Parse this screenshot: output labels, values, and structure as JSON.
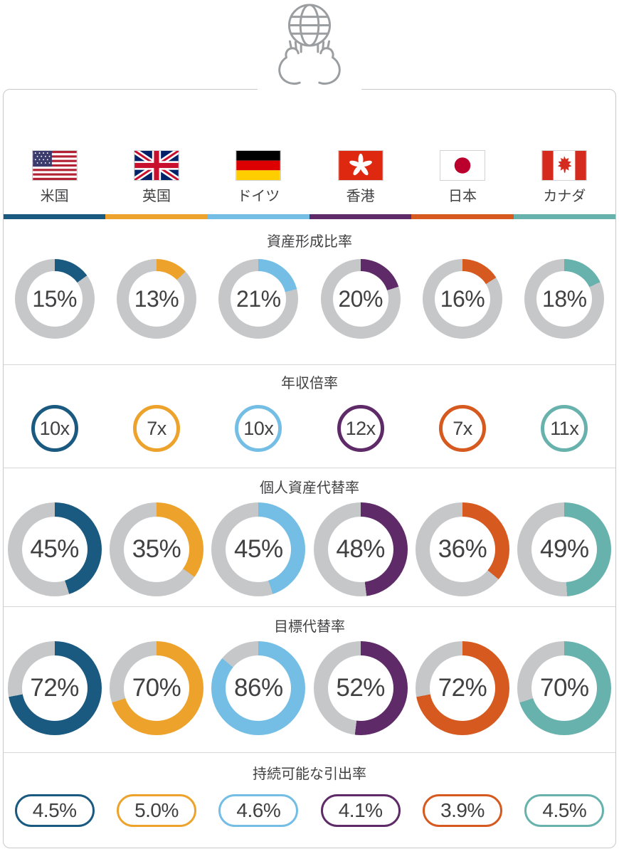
{
  "header": {
    "icon": "globe-in-hands-icon"
  },
  "countries": [
    {
      "name": "米国",
      "color": "#1b5a80",
      "flag_icon": "us-flag-icon",
      "flag": "us"
    },
    {
      "name": "英国",
      "color": "#eda32b",
      "flag_icon": "uk-flag-icon",
      "flag": "uk"
    },
    {
      "name": "ドイツ",
      "color": "#74bee6",
      "flag_icon": "germany-flag-icon",
      "flag": "de"
    },
    {
      "name": "香港",
      "color": "#5e2a68",
      "flag_icon": "hong-kong-flag-icon",
      "flag": "hk"
    },
    {
      "name": "日本",
      "color": "#d65a1f",
      "flag_icon": "japan-flag-icon",
      "flag": "jp"
    },
    {
      "name": "カナダ",
      "color": "#68b2ae",
      "flag_icon": "canada-flag-icon",
      "flag": "ca"
    }
  ],
  "sections": [
    {
      "id": "asset-formation-ratio",
      "title": "資産形成比率",
      "type": "donut",
      "size": "small",
      "labels": [
        "15%",
        "13%",
        "21%",
        "20%",
        "16%",
        "18%"
      ],
      "pct": [
        15,
        13,
        21,
        20,
        16,
        18
      ]
    },
    {
      "id": "income-multiple",
      "title": "年収倍率",
      "type": "ring",
      "labels": [
        "10x",
        "7x",
        "10x",
        "12x",
        "7x",
        "11x"
      ]
    },
    {
      "id": "personal-asset-replacement-rate",
      "title": "個人資産代替率",
      "type": "donut",
      "size": "large",
      "labels": [
        "45%",
        "35%",
        "45%",
        "48%",
        "36%",
        "49%"
      ],
      "pct": [
        45,
        35,
        45,
        48,
        36,
        49
      ]
    },
    {
      "id": "target-replacement-rate",
      "title": "目標代替率",
      "type": "donut",
      "size": "large",
      "labels": [
        "72%",
        "70%",
        "86%",
        "52%",
        "72%",
        "70%"
      ],
      "pct": [
        72,
        70,
        86,
        52,
        72,
        70
      ]
    },
    {
      "id": "sustainable-withdrawal-rate",
      "title": "持続可能な引出率",
      "type": "pill",
      "labels": [
        "4.5%",
        "5.0%",
        "4.6%",
        "4.1%",
        "3.9%",
        "4.5%"
      ]
    }
  ],
  "colors": {
    "donut_track": "#c6c7c9",
    "text": "#414042",
    "divider": "#d6d7d8",
    "panel_border": "#c8c9ca"
  },
  "chart_data": [
    {
      "type": "pie",
      "title": "資産形成比率",
      "categories": [
        "米国",
        "英国",
        "ドイツ",
        "香港",
        "日本",
        "カナダ"
      ],
      "values": [
        15,
        13,
        21,
        20,
        16,
        18
      ],
      "unit": "%",
      "note": "one donut gauge per country, colored arc starts at 12 o'clock clockwise, gray remainder"
    },
    {
      "type": "table",
      "title": "年収倍率",
      "categories": [
        "米国",
        "英国",
        "ドイツ",
        "香港",
        "日本",
        "カナダ"
      ],
      "values": [
        10,
        7,
        10,
        12,
        7,
        11
      ],
      "unit": "x",
      "note": "plain colored rings with multiple of annual income"
    },
    {
      "type": "pie",
      "title": "個人資産代替率",
      "categories": [
        "米国",
        "英国",
        "ドイツ",
        "香港",
        "日本",
        "カナダ"
      ],
      "values": [
        45,
        35,
        45,
        48,
        36,
        49
      ],
      "unit": "%",
      "note": "one donut gauge per country"
    },
    {
      "type": "pie",
      "title": "目標代替率",
      "categories": [
        "米国",
        "英国",
        "ドイツ",
        "香港",
        "日本",
        "カナダ"
      ],
      "values": [
        72,
        70,
        86,
        52,
        72,
        70
      ],
      "unit": "%",
      "note": "one donut gauge per country"
    },
    {
      "type": "table",
      "title": "持続可能な引出率",
      "categories": [
        "米国",
        "英国",
        "ドイツ",
        "香港",
        "日本",
        "カナダ"
      ],
      "values": [
        4.5,
        5.0,
        4.6,
        4.1,
        3.9,
        4.5
      ],
      "unit": "%",
      "note": "pill-shaped outlined badges per country"
    }
  ]
}
